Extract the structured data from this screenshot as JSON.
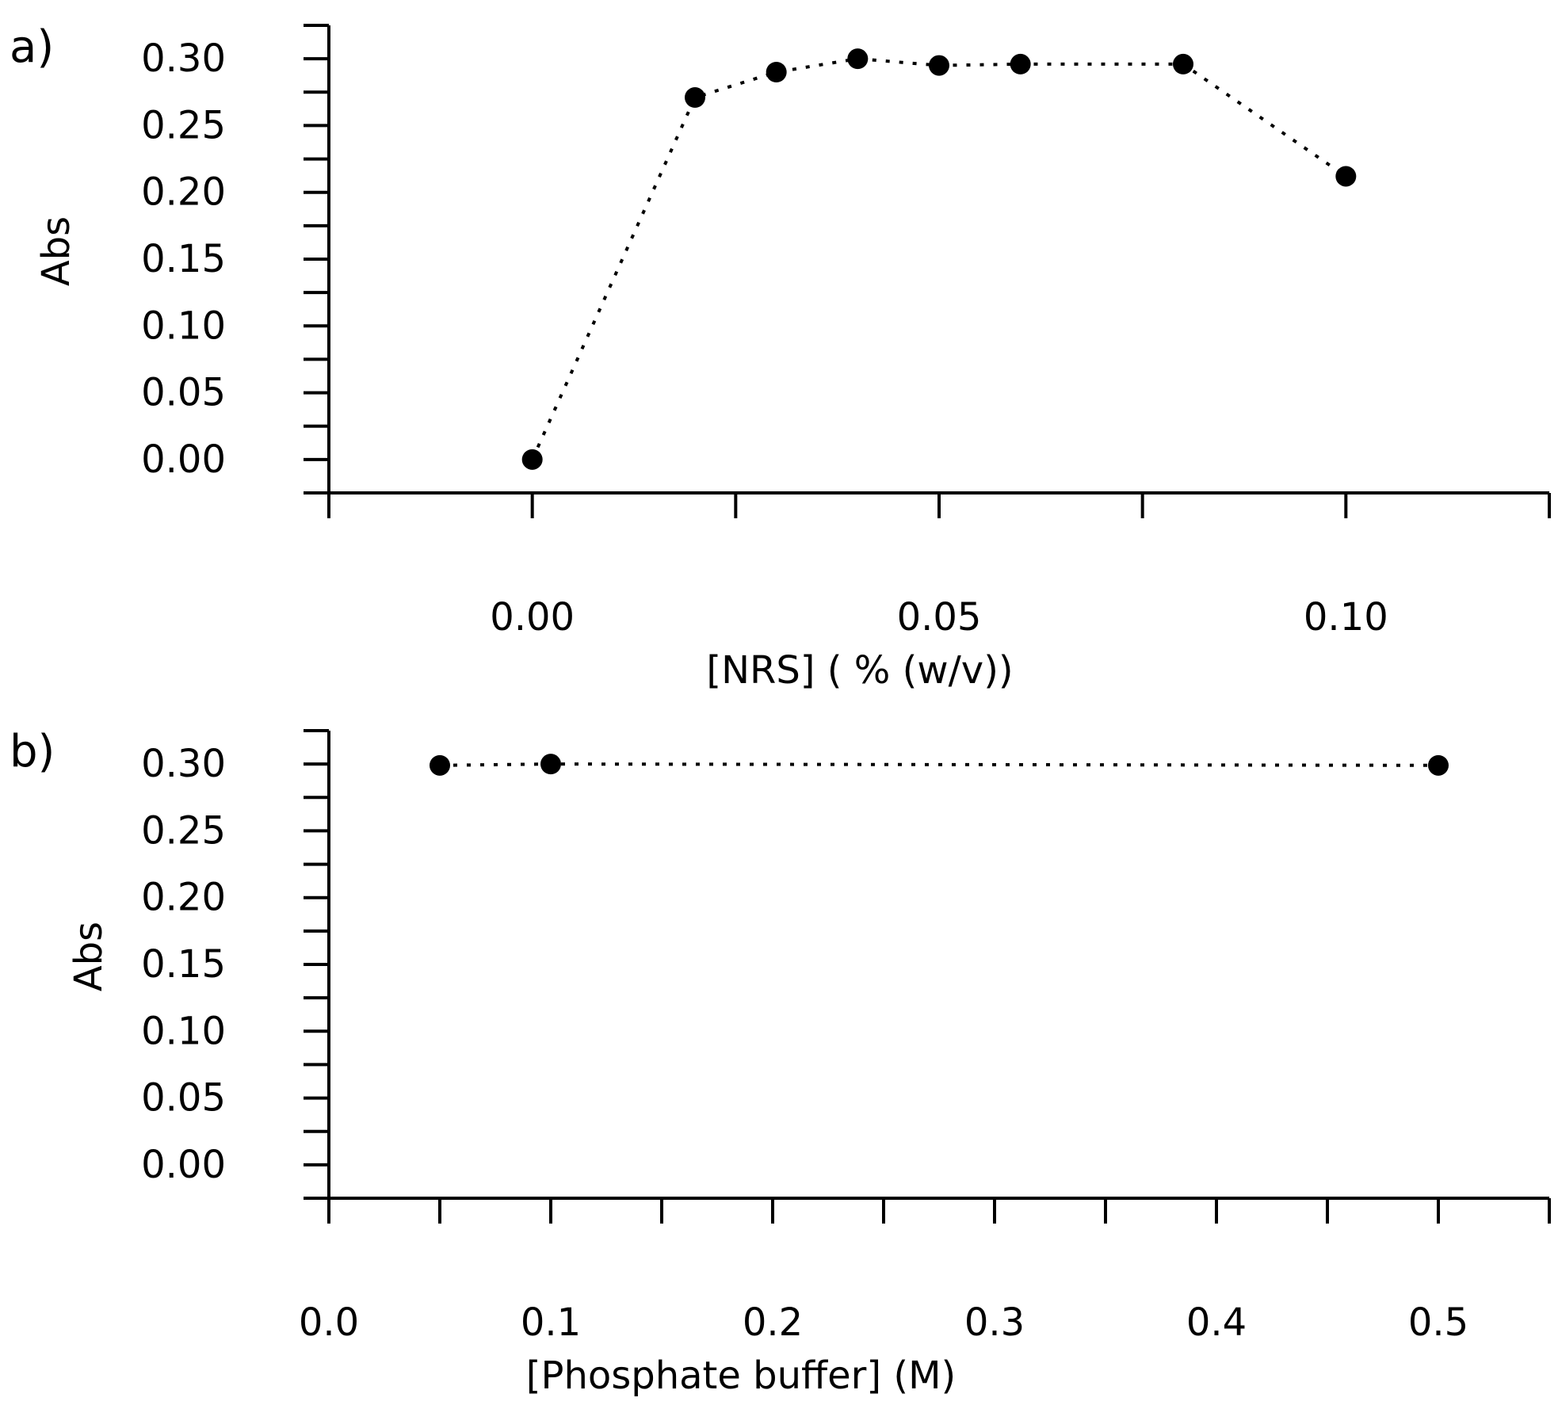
{
  "chart_data": [
    {
      "panel_label": "a)",
      "type": "scatter",
      "xlabel": "[NRS] ( % (w/v))",
      "ylabel": "Abs",
      "xlim": [
        -0.025,
        0.125
      ],
      "ylim": [
        -0.025,
        0.325
      ],
      "x_ticks": [
        -0.025,
        0,
        0.025,
        0.05,
        0.075,
        0.1,
        0.125
      ],
      "x_tick_labels": [
        {
          "value": 0,
          "label": "0.00"
        },
        {
          "value": 0.05,
          "label": "0.05"
        },
        {
          "value": 0.1,
          "label": "0.10"
        }
      ],
      "y_ticks": [
        -0.025,
        0,
        0.025,
        0.05,
        0.075,
        0.1,
        0.125,
        0.15,
        0.175,
        0.2,
        0.225,
        0.25,
        0.275,
        0.3,
        0.325
      ],
      "y_tick_labels": [
        {
          "value": 0.0,
          "label": "0.00"
        },
        {
          "value": 0.05,
          "label": "0.05"
        },
        {
          "value": 0.1,
          "label": "0.10"
        },
        {
          "value": 0.15,
          "label": "0.15"
        },
        {
          "value": 0.2,
          "label": "0.20"
        },
        {
          "value": 0.25,
          "label": "0.25"
        },
        {
          "value": 0.3,
          "label": "0.30"
        }
      ],
      "line_style": "dotted",
      "colors": {
        "marker": "#000000",
        "line": "#000000"
      },
      "series": [
        {
          "name": "Abs",
          "x": [
            0,
            0.02,
            0.03,
            0.04,
            0.05,
            0.06,
            0.08,
            0.1
          ],
          "y": [
            0.0,
            0.271,
            0.29,
            0.3,
            0.295,
            0.296,
            0.296,
            0.212
          ]
        }
      ]
    },
    {
      "panel_label": "b)",
      "type": "scatter",
      "xlabel": "[Phosphate buffer] (M)",
      "ylabel": "Abs",
      "xlim": [
        0,
        0.55
      ],
      "ylim": [
        -0.025,
        0.325
      ],
      "x_ticks": [
        0,
        0.05,
        0.1,
        0.15,
        0.2,
        0.25,
        0.3,
        0.35,
        0.4,
        0.45,
        0.5,
        0.55
      ],
      "x_tick_labels": [
        {
          "value": 0.0,
          "label": "0.0"
        },
        {
          "value": 0.1,
          "label": "0.1"
        },
        {
          "value": 0.2,
          "label": "0.2"
        },
        {
          "value": 0.3,
          "label": "0.3"
        },
        {
          "value": 0.4,
          "label": "0.4"
        },
        {
          "value": 0.5,
          "label": "0.5"
        }
      ],
      "y_ticks": [
        -0.025,
        0,
        0.025,
        0.05,
        0.075,
        0.1,
        0.125,
        0.15,
        0.175,
        0.2,
        0.225,
        0.25,
        0.275,
        0.3,
        0.325
      ],
      "y_tick_labels": [
        {
          "value": 0.0,
          "label": "0.00"
        },
        {
          "value": 0.05,
          "label": "0.05"
        },
        {
          "value": 0.1,
          "label": "0.10"
        },
        {
          "value": 0.15,
          "label": "0.15"
        },
        {
          "value": 0.2,
          "label": "0.20"
        },
        {
          "value": 0.25,
          "label": "0.25"
        },
        {
          "value": 0.3,
          "label": "0.30"
        }
      ],
      "line_style": "dotted",
      "colors": {
        "marker": "#000000",
        "line": "#000000"
      },
      "series": [
        {
          "name": "Abs",
          "x": [
            0.05,
            0.1,
            0.5
          ],
          "y": [
            0.299,
            0.3,
            0.299
          ]
        }
      ]
    }
  ]
}
